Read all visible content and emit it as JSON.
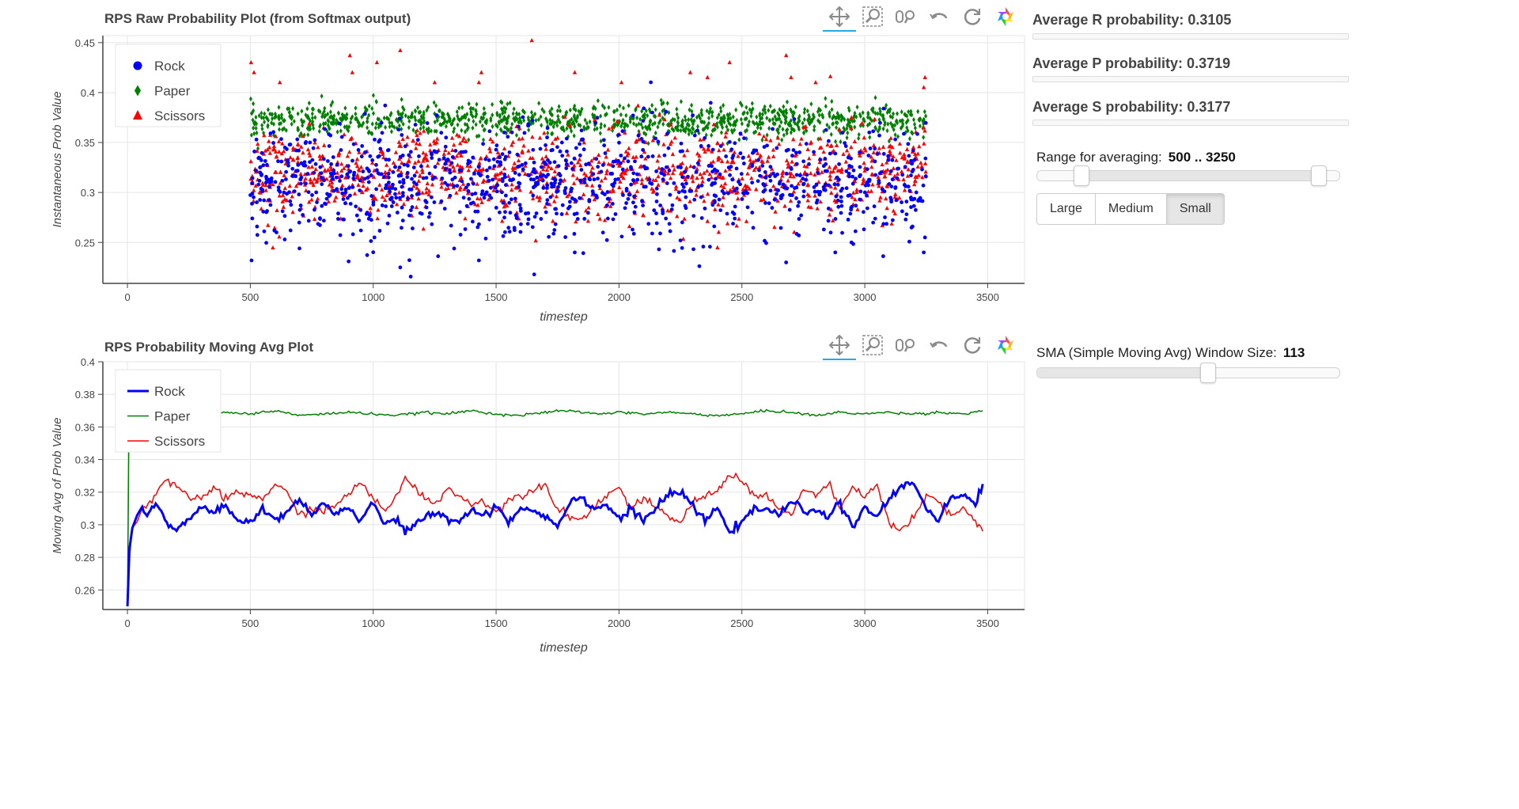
{
  "colors": {
    "rock": "#0000ff",
    "paper": "#008000",
    "scissors": "#ff0000"
  },
  "toolbar_icons": [
    "pan-icon",
    "box-zoom-icon",
    "wheel-zoom-icon",
    "undo-icon",
    "reset-icon",
    "bokeh-logo-icon"
  ],
  "side_panel": {
    "avg_r": "Average R probability: 0.3105",
    "avg_p": "Average P probability: 0.3719",
    "avg_s": "Average S probability: 0.3177",
    "range_label": "Range for averaging:",
    "range_value": "500 .. 3250",
    "range": {
      "start": 0,
      "end": 3500,
      "value": [
        500,
        3250
      ]
    },
    "buttons": [
      {
        "label": "Large",
        "active": false
      },
      {
        "label": "Medium",
        "active": false
      },
      {
        "label": "Small",
        "active": true
      }
    ],
    "sma_label": "SMA (Simple Moving Avg) Window Size:",
    "sma_value": "113",
    "sma": {
      "start": 1,
      "end": 200,
      "value": 113
    }
  },
  "chart_data": [
    {
      "type": "scatter",
      "title": "RPS Raw Probability Plot (from Softmax output)",
      "xlabel": "timestep",
      "ylabel": "Instantaneous Prob Value",
      "xlim": [
        -100,
        3650
      ],
      "ylim": [
        0.209,
        0.457
      ],
      "xticks": [
        0,
        500,
        1000,
        1500,
        2000,
        2500,
        3000,
        3500
      ],
      "yticks": [
        0.25,
        0.3,
        0.35,
        0.4,
        0.45
      ],
      "ytick_labels": [
        "0.25",
        "0.3",
        "0.35",
        "0.4",
        "0.45"
      ],
      "grid": true,
      "legend_position": "top-left",
      "x_range": [
        500,
        3250
      ],
      "series": [
        {
          "name": "Rock",
          "marker": "circle",
          "mean": 0.3105,
          "spread": 0.028,
          "points": [
            [
              505,
              0.232
            ],
            [
              640,
              0.253
            ],
            [
              700,
              0.244
            ],
            [
              900,
              0.231
            ],
            [
              950,
              0.262
            ],
            [
              1005,
              0.255
            ],
            [
              1110,
              0.225
            ],
            [
              1160,
              0.264
            ],
            [
              1430,
              0.232
            ],
            [
              1655,
              0.218
            ],
            [
              1820,
              0.24
            ],
            [
              2250,
              0.252
            ],
            [
              2680,
              0.23
            ],
            [
              2880,
              0.24
            ],
            [
              3240,
              0.24
            ],
            [
              3245,
              0.255
            ]
          ]
        },
        {
          "name": "Paper",
          "marker": "diamond",
          "mean": 0.3719,
          "spread": 0.008,
          "points": []
        },
        {
          "name": "Scissors",
          "marker": "triangle",
          "mean": 0.3177,
          "spread": 0.022,
          "points": [
            [
              503,
              0.43
            ],
            [
              515,
              0.42
            ],
            [
              620,
              0.41
            ],
            [
              905,
              0.437
            ],
            [
              915,
              0.42
            ],
            [
              1015,
              0.43
            ],
            [
              1110,
              0.442
            ],
            [
              1250,
              0.41
            ],
            [
              1430,
              0.41
            ],
            [
              1440,
              0.42
            ],
            [
              1645,
              0.452
            ],
            [
              1820,
              0.42
            ],
            [
              2010,
              0.41
            ],
            [
              2290,
              0.42
            ],
            [
              2360,
              0.415
            ],
            [
              2450,
              0.43
            ],
            [
              2680,
              0.437
            ],
            [
              2700,
              0.415
            ],
            [
              2800,
              0.41
            ],
            [
              2860,
              0.416
            ],
            [
              3245,
              0.415
            ],
            [
              3240,
              0.405
            ]
          ]
        }
      ]
    },
    {
      "type": "line",
      "title": "RPS Probability Moving Avg Plot",
      "xlabel": "timestep",
      "ylabel": "Moving Avg of Prob Value",
      "xlim": [
        -100,
        3650
      ],
      "ylim": [
        0.248,
        0.4
      ],
      "xticks": [
        0,
        500,
        1000,
        1500,
        2000,
        2500,
        3000,
        3500
      ],
      "yticks": [
        0.26,
        0.28,
        0.3,
        0.32,
        0.34,
        0.36,
        0.38,
        0.4
      ],
      "ytick_labels": [
        "0.26",
        "0.28",
        "0.3",
        "0.32",
        "0.34",
        "0.36",
        "0.38",
        "0.4"
      ],
      "grid": true,
      "legend_position": "top-left",
      "series": [
        {
          "name": "Rock",
          "width": 3,
          "points": [
            [
              0,
              0.25
            ],
            [
              8,
              0.285
            ],
            [
              20,
              0.298
            ],
            [
              40,
              0.306
            ],
            [
              60,
              0.311
            ],
            [
              80,
              0.304
            ],
            [
              100,
              0.312
            ],
            [
              130,
              0.31
            ],
            [
              160,
              0.3
            ],
            [
              200,
              0.297
            ],
            [
              250,
              0.303
            ],
            [
              300,
              0.312
            ],
            [
              350,
              0.307
            ],
            [
              400,
              0.311
            ],
            [
              450,
              0.302
            ],
            [
              500,
              0.302
            ],
            [
              550,
              0.31
            ],
            [
              600,
              0.303
            ],
            [
              650,
              0.307
            ],
            [
              700,
              0.317
            ],
            [
              750,
              0.306
            ],
            [
              800,
              0.313
            ],
            [
              850,
              0.307
            ],
            [
              900,
              0.311
            ],
            [
              950,
              0.302
            ],
            [
              1000,
              0.313
            ],
            [
              1050,
              0.3
            ],
            [
              1100,
              0.304
            ],
            [
              1130,
              0.295
            ],
            [
              1200,
              0.303
            ],
            [
              1250,
              0.308
            ],
            [
              1300,
              0.304
            ],
            [
              1350,
              0.302
            ],
            [
              1400,
              0.31
            ],
            [
              1450,
              0.305
            ],
            [
              1500,
              0.312
            ],
            [
              1550,
              0.302
            ],
            [
              1600,
              0.31
            ],
            [
              1650,
              0.309
            ],
            [
              1700,
              0.305
            ],
            [
              1750,
              0.3
            ],
            [
              1800,
              0.314
            ],
            [
              1850,
              0.317
            ],
            [
              1900,
              0.31
            ],
            [
              1950,
              0.312
            ],
            [
              2000,
              0.304
            ],
            [
              2050,
              0.309
            ],
            [
              2100,
              0.303
            ],
            [
              2150,
              0.31
            ],
            [
              2200,
              0.318
            ],
            [
              2250,
              0.32
            ],
            [
              2300,
              0.312
            ],
            [
              2350,
              0.302
            ],
            [
              2400,
              0.31
            ],
            [
              2450,
              0.297
            ],
            [
              2500,
              0.3
            ],
            [
              2550,
              0.31
            ],
            [
              2600,
              0.31
            ],
            [
              2650,
              0.305
            ],
            [
              2700,
              0.315
            ],
            [
              2750,
              0.308
            ],
            [
              2800,
              0.31
            ],
            [
              2850,
              0.305
            ],
            [
              2900,
              0.313
            ],
            [
              2950,
              0.299
            ],
            [
              3000,
              0.309
            ],
            [
              3050,
              0.306
            ],
            [
              3100,
              0.315
            ],
            [
              3150,
              0.324
            ],
            [
              3200,
              0.326
            ],
            [
              3250,
              0.31
            ],
            [
              3300,
              0.304
            ],
            [
              3350,
              0.316
            ],
            [
              3400,
              0.318
            ],
            [
              3450,
              0.313
            ],
            [
              3480,
              0.325
            ]
          ]
        },
        {
          "name": "Paper",
          "width": 1.5,
          "points": [
            [
              0,
              0.25
            ],
            [
              3,
              0.3
            ],
            [
              6,
              0.36
            ],
            [
              10,
              0.37
            ],
            [
              20,
              0.37
            ],
            [
              60,
              0.369
            ],
            [
              100,
              0.368
            ],
            [
              200,
              0.369
            ],
            [
              300,
              0.368
            ],
            [
              400,
              0.369
            ],
            [
              500,
              0.368
            ],
            [
              600,
              0.37
            ],
            [
              700,
              0.367
            ],
            [
              800,
              0.368
            ],
            [
              900,
              0.369
            ],
            [
              1000,
              0.368
            ],
            [
              1100,
              0.367
            ],
            [
              1200,
              0.369
            ],
            [
              1300,
              0.368
            ],
            [
              1400,
              0.37
            ],
            [
              1500,
              0.368
            ],
            [
              1600,
              0.367
            ],
            [
              1700,
              0.369
            ],
            [
              1800,
              0.37
            ],
            [
              1900,
              0.368
            ],
            [
              2000,
              0.369
            ],
            [
              2100,
              0.368
            ],
            [
              2200,
              0.369
            ],
            [
              2300,
              0.368
            ],
            [
              2400,
              0.367
            ],
            [
              2500,
              0.368
            ],
            [
              2600,
              0.37
            ],
            [
              2700,
              0.369
            ],
            [
              2800,
              0.367
            ],
            [
              2900,
              0.369
            ],
            [
              3000,
              0.368
            ],
            [
              3100,
              0.369
            ],
            [
              3200,
              0.368
            ],
            [
              3300,
              0.369
            ],
            [
              3400,
              0.368
            ],
            [
              3480,
              0.37
            ]
          ]
        },
        {
          "name": "Scissors",
          "width": 1.5,
          "points": [
            [
              0,
              0.25
            ],
            [
              8,
              0.28
            ],
            [
              20,
              0.298
            ],
            [
              40,
              0.302
            ],
            [
              60,
              0.31
            ],
            [
              100,
              0.315
            ],
            [
              150,
              0.327
            ],
            [
              200,
              0.323
            ],
            [
              250,
              0.316
            ],
            [
              300,
              0.317
            ],
            [
              350,
              0.322
            ],
            [
              400,
              0.316
            ],
            [
              450,
              0.32
            ],
            [
              500,
              0.318
            ],
            [
              550,
              0.316
            ],
            [
              600,
              0.325
            ],
            [
              650,
              0.319
            ],
            [
              700,
              0.306
            ],
            [
              750,
              0.31
            ],
            [
              800,
              0.308
            ],
            [
              850,
              0.312
            ],
            [
              900,
              0.32
            ],
            [
              950,
              0.325
            ],
            [
              1000,
              0.316
            ],
            [
              1050,
              0.308
            ],
            [
              1100,
              0.32
            ],
            [
              1130,
              0.328
            ],
            [
              1200,
              0.318
            ],
            [
              1250,
              0.313
            ],
            [
              1300,
              0.322
            ],
            [
              1350,
              0.318
            ],
            [
              1400,
              0.312
            ],
            [
              1450,
              0.315
            ],
            [
              1500,
              0.308
            ],
            [
              1550,
              0.315
            ],
            [
              1600,
              0.318
            ],
            [
              1650,
              0.322
            ],
            [
              1700,
              0.325
            ],
            [
              1750,
              0.31
            ],
            [
              1800,
              0.305
            ],
            [
              1850,
              0.303
            ],
            [
              1900,
              0.312
            ],
            [
              1950,
              0.318
            ],
            [
              2000,
              0.323
            ],
            [
              2050,
              0.31
            ],
            [
              2100,
              0.316
            ],
            [
              2150,
              0.31
            ],
            [
              2200,
              0.305
            ],
            [
              2250,
              0.302
            ],
            [
              2300,
              0.313
            ],
            [
              2350,
              0.318
            ],
            [
              2400,
              0.32
            ],
            [
              2450,
              0.332
            ],
            [
              2500,
              0.327
            ],
            [
              2550,
              0.318
            ],
            [
              2600,
              0.318
            ],
            [
              2650,
              0.31
            ],
            [
              2700,
              0.305
            ],
            [
              2750,
              0.322
            ],
            [
              2800,
              0.318
            ],
            [
              2850,
              0.325
            ],
            [
              2900,
              0.31
            ],
            [
              2950,
              0.322
            ],
            [
              3000,
              0.318
            ],
            [
              3050,
              0.325
            ],
            [
              3100,
              0.3
            ],
            [
              3150,
              0.297
            ],
            [
              3200,
              0.304
            ],
            [
              3250,
              0.318
            ],
            [
              3300,
              0.314
            ],
            [
              3350,
              0.305
            ],
            [
              3400,
              0.31
            ],
            [
              3450,
              0.302
            ],
            [
              3480,
              0.296
            ]
          ]
        }
      ]
    }
  ]
}
